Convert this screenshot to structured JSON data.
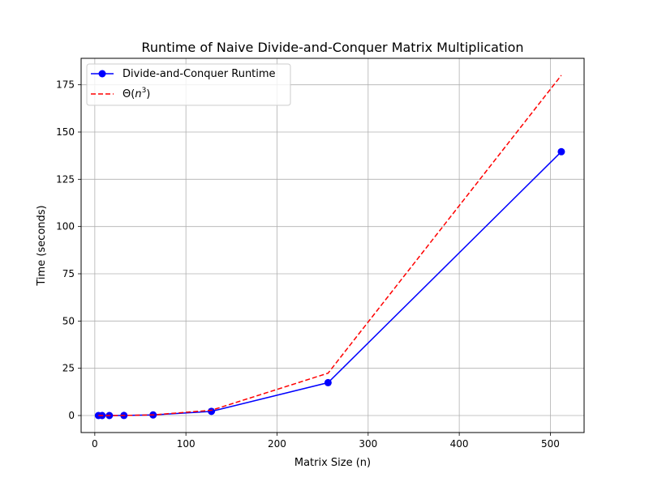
{
  "chart_data": {
    "type": "line",
    "title": "Runtime of Naive Divide-and-Conquer Matrix Multiplication",
    "xlabel": "Matrix Size (n)",
    "ylabel": "Time (seconds)",
    "xlim": [
      -15,
      537
    ],
    "ylim": [
      -9,
      189
    ],
    "xticks": [
      0,
      100,
      200,
      300,
      400,
      500
    ],
    "yticks": [
      0,
      25,
      50,
      75,
      100,
      125,
      150,
      175
    ],
    "grid": true,
    "legend_position": "top-left",
    "x": [
      4,
      8,
      16,
      32,
      64,
      128,
      256,
      512
    ],
    "series": [
      {
        "name": "Divide-and-Conquer Runtime",
        "color": "#0000ff",
        "style": "solid",
        "marker": "circle",
        "values": [
          0.0,
          0.0,
          0.0,
          0.04,
          0.3,
          2.2,
          17.4,
          139.6
        ]
      },
      {
        "name": "Θ(n³)",
        "name_base": "Θ(",
        "name_var": "n",
        "name_exp": "3",
        "name_close": ")",
        "color": "#ff0000",
        "style": "dashed",
        "marker": "none",
        "values": [
          0.0001,
          0.0007,
          0.0055,
          0.044,
          0.35,
          2.8,
          22.4,
          180.0
        ]
      }
    ]
  }
}
